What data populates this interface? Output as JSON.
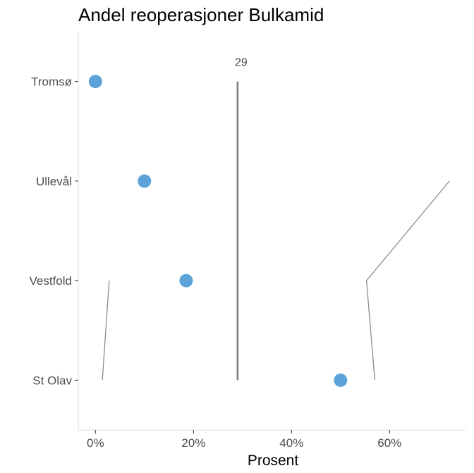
{
  "chart_data": {
    "type": "scatter",
    "title": "Andel reoperasjoner Bulkamid",
    "xlabel": "Prosent",
    "ylabel": "",
    "xlim": [
      -3.5,
      75.5
    ],
    "x_ticks": [
      0,
      20,
      40,
      60
    ],
    "x_tick_labels": [
      "0%",
      "20%",
      "40%",
      "60%"
    ],
    "categories": [
      "Tromsø",
      "Ullevål",
      "Vestfold",
      "St Olav"
    ],
    "values": [
      0,
      10,
      18.5,
      50
    ],
    "point_color": "#5ba3d9",
    "reference_line": {
      "value": 29,
      "label": "29"
    },
    "interval_lines": [
      {
        "points": [
          [
            2.8,
            "Vestfold"
          ],
          [
            1.4,
            "St Olav"
          ]
        ]
      },
      {
        "points": [
          [
            72.2,
            "Ullevål"
          ],
          [
            55.3,
            "Vestfold"
          ],
          [
            57,
            "St Olav"
          ]
        ]
      }
    ],
    "grid": false,
    "legend": "none"
  }
}
